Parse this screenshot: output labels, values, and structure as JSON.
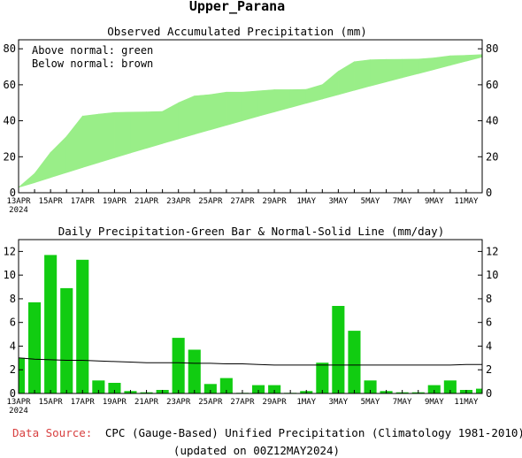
{
  "page": {
    "title": "Upper_Parana",
    "source_label": "Data Source:",
    "source_text": "CPC (Gauge-Based) Unified Precipitation (Climatology 1981-2010)",
    "updated": "(updated on 00Z12MAY2024)"
  },
  "colors": {
    "green": "#99ee88",
    "brown": "#c8907a",
    "bar": "#11cc11",
    "source_label": "#d84040"
  },
  "x_tick_labels": [
    "13APR",
    "15APR",
    "17APR",
    "19APR",
    "21APR",
    "23APR",
    "25APR",
    "27APR",
    "29APR",
    "1MAY",
    "3MAY",
    "5MAY",
    "7MAY",
    "9MAY",
    "11MAY"
  ],
  "x_year_label": "2024",
  "chart_data": [
    {
      "type": "area",
      "title": "Observed Accumulated Precipitation (mm)",
      "annotations": [
        "Above normal: green",
        "Below normal: brown"
      ],
      "xlabel": "",
      "ylabel": "",
      "ylim": [
        0,
        85
      ],
      "yticks": [
        0,
        20,
        40,
        60,
        80
      ],
      "x": [
        "13APR",
        "14APR",
        "15APR",
        "16APR",
        "17APR",
        "18APR",
        "19APR",
        "20APR",
        "21APR",
        "22APR",
        "23APR",
        "24APR",
        "25APR",
        "26APR",
        "27APR",
        "28APR",
        "29APR",
        "30APR",
        "1MAY",
        "2MAY",
        "3MAY",
        "4MAY",
        "5MAY",
        "6MAY",
        "7MAY",
        "8MAY",
        "9MAY",
        "10MAY",
        "11MAY",
        "12MAY"
      ],
      "series": [
        {
          "name": "Observed",
          "values": [
            3,
            10.7,
            22.4,
            31.3,
            42.6,
            43.7,
            44.6,
            44.8,
            44.9,
            45.2,
            50,
            53.8,
            54.6,
            55.9,
            55.9,
            56.6,
            57.3,
            57.3,
            57.5,
            60.1,
            67.5,
            72.8,
            73.9,
            74.1,
            74.2,
            74.3,
            75.0,
            76.1,
            76.4,
            76.8
          ]
        },
        {
          "name": "Normal",
          "values": [
            3,
            5.6,
            8.4,
            11.2,
            14.0,
            16.7,
            19.4,
            22.1,
            24.7,
            27.3,
            29.9,
            32.5,
            35.0,
            37.5,
            40.0,
            42.5,
            44.9,
            47.3,
            49.7,
            52.1,
            54.5,
            56.9,
            59.3,
            61.6,
            63.9,
            66.2,
            68.5,
            70.8,
            73.1,
            75.4
          ]
        }
      ],
      "grid": false
    },
    {
      "type": "bar",
      "title": "Daily Precipitation-Green Bar & Normal-Solid Line (mm/day)",
      "xlabel": "",
      "ylabel": "",
      "ylim": [
        0,
        13
      ],
      "yticks": [
        0,
        2,
        4,
        6,
        8,
        10,
        12
      ],
      "categories": [
        "13APR",
        "14APR",
        "15APR",
        "16APR",
        "17APR",
        "18APR",
        "19APR",
        "20APR",
        "21APR",
        "22APR",
        "23APR",
        "24APR",
        "25APR",
        "26APR",
        "27APR",
        "28APR",
        "29APR",
        "30APR",
        "1MAY",
        "2MAY",
        "3MAY",
        "4MAY",
        "5MAY",
        "6MAY",
        "7MAY",
        "8MAY",
        "9MAY",
        "10MAY",
        "11MAY",
        "12MAY"
      ],
      "series": [
        {
          "name": "Daily Precipitation",
          "values": [
            3.0,
            7.7,
            11.7,
            8.9,
            11.3,
            1.1,
            0.9,
            0.2,
            0.1,
            0.3,
            4.7,
            3.7,
            0.8,
            1.3,
            0.05,
            0.7,
            0.7,
            0.05,
            0.2,
            2.6,
            7.4,
            5.3,
            1.1,
            0.2,
            0.1,
            0.1,
            0.7,
            1.1,
            0.3,
            0.4
          ]
        },
        {
          "name": "Normal",
          "values": [
            3.0,
            2.9,
            2.85,
            2.8,
            2.8,
            2.75,
            2.7,
            2.65,
            2.6,
            2.6,
            2.6,
            2.55,
            2.55,
            2.5,
            2.5,
            2.45,
            2.4,
            2.4,
            2.4,
            2.4,
            2.4,
            2.4,
            2.4,
            2.4,
            2.4,
            2.4,
            2.4,
            2.4,
            2.45,
            2.45
          ]
        }
      ],
      "grid": false
    }
  ]
}
